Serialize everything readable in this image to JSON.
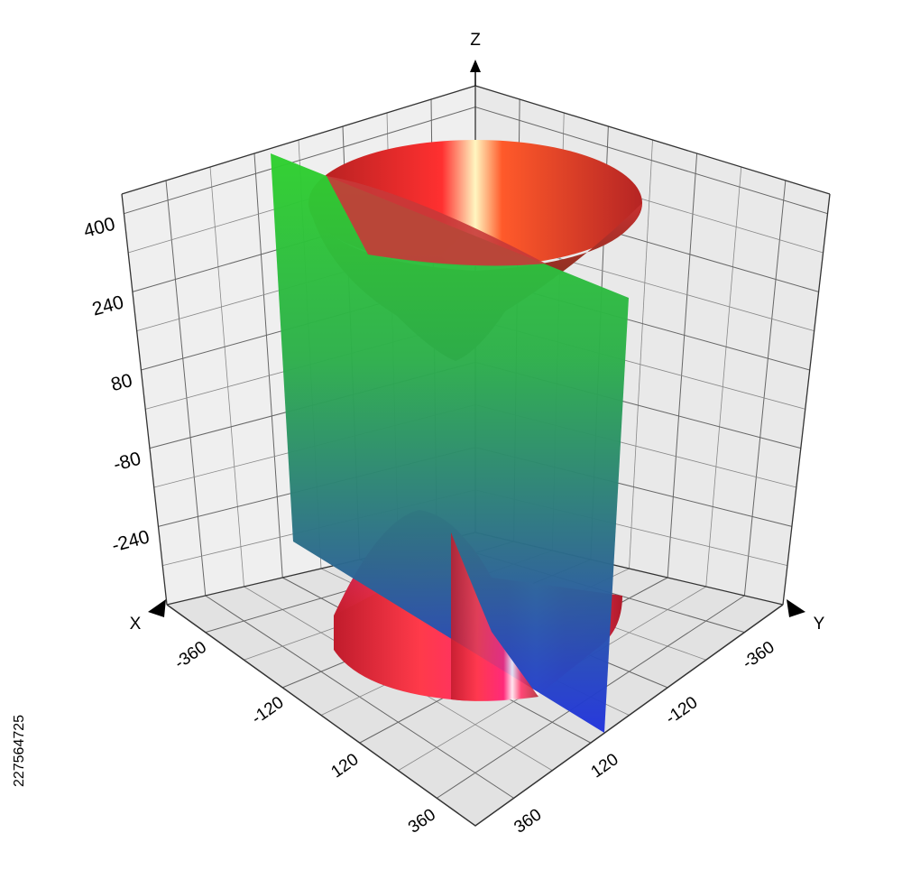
{
  "chart_data": {
    "type": "surface3d",
    "x_label": "X",
    "y_label": "Y",
    "z_label": "Z",
    "xlim": [
      -480,
      480
    ],
    "xticks": [
      -360,
      -120,
      120,
      360
    ],
    "ylim": [
      -480,
      480
    ],
    "yticks": [
      -360,
      -120,
      120,
      360
    ],
    "zlim": [
      -400,
      440
    ],
    "zticks": [
      400,
      240,
      80,
      -80,
      -240
    ],
    "grid": true,
    "annotations": [
      "227564725"
    ]
  }
}
